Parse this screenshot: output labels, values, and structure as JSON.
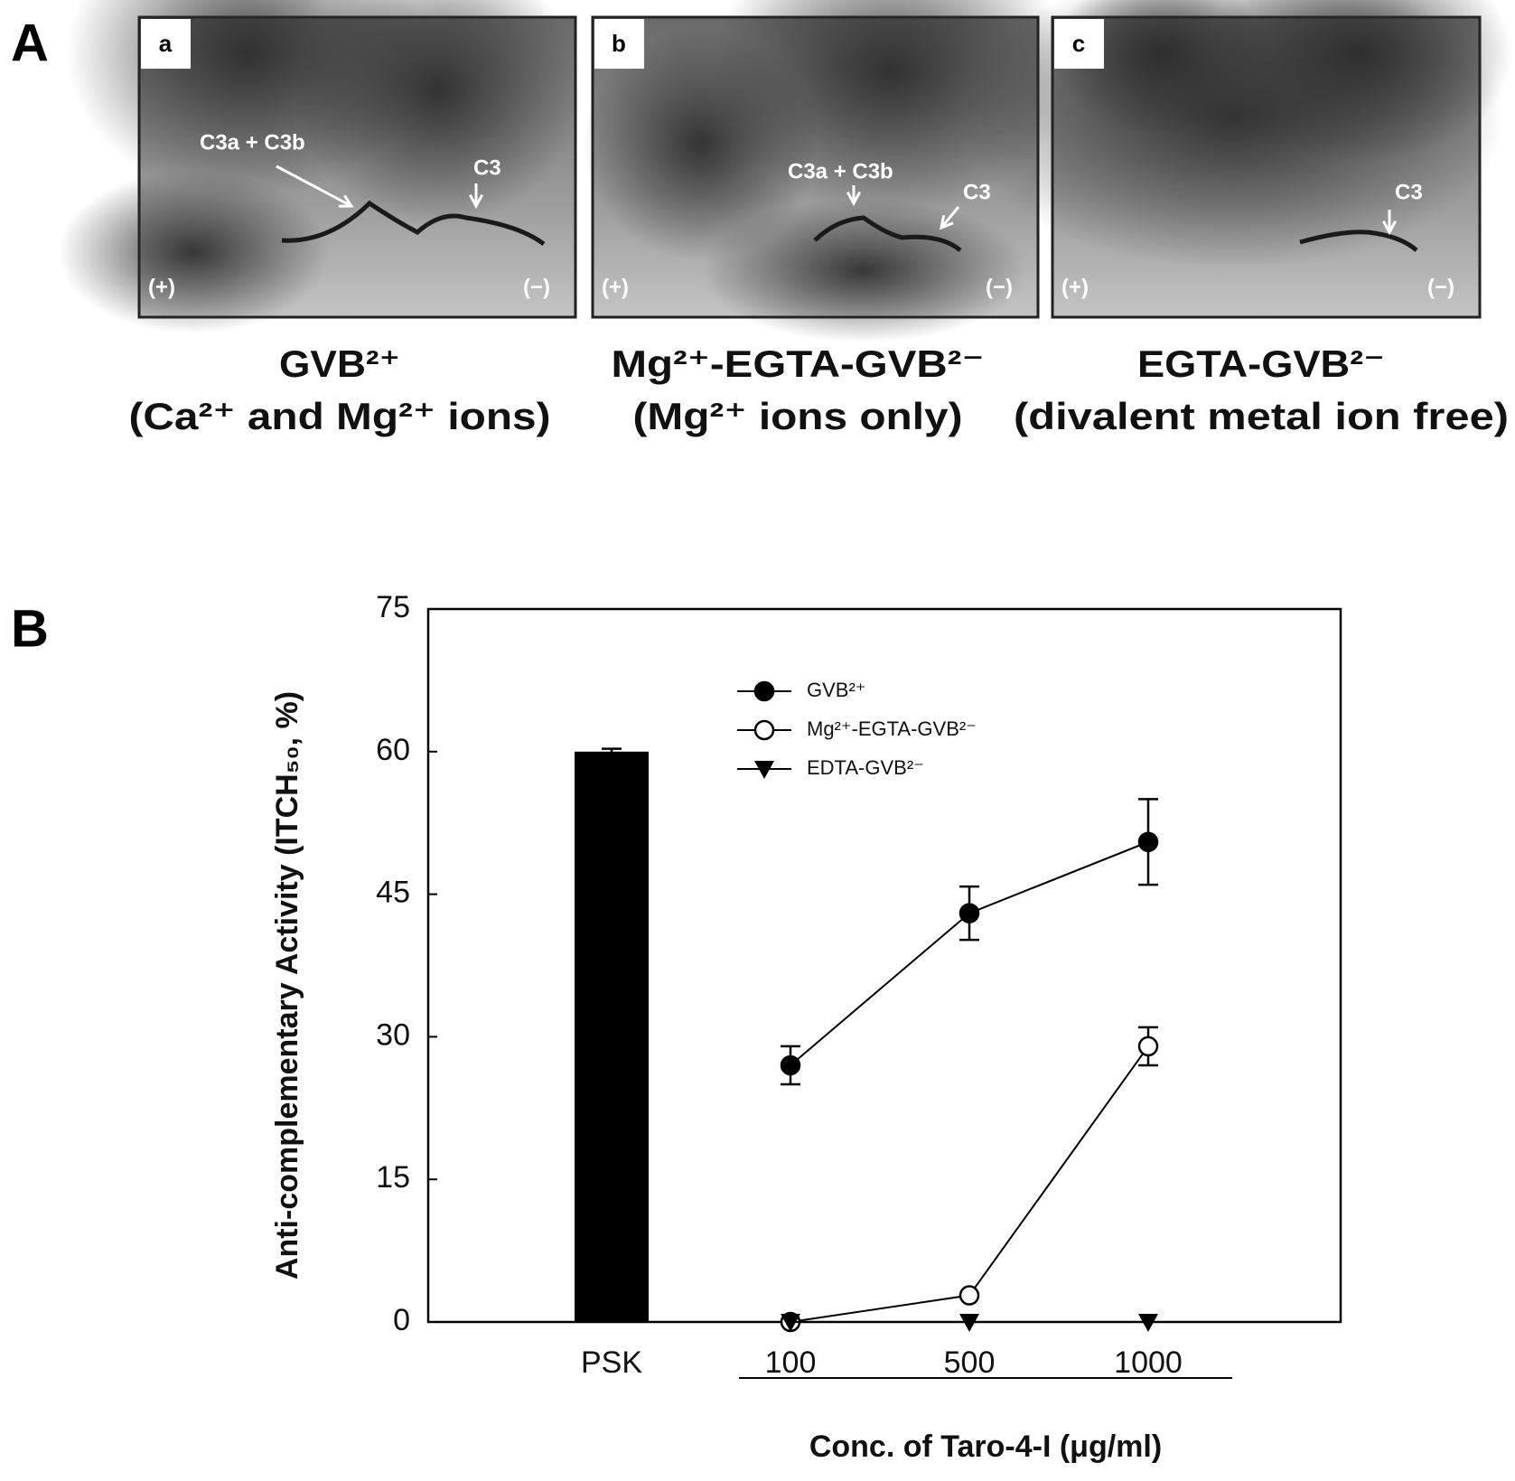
{
  "figure_labels": [
    "A",
    "B"
  ],
  "panels": [
    {
      "letter": "a",
      "annotations": [
        "C3a + C3b",
        "C3"
      ],
      "plus": "(+)",
      "minus": "(−)",
      "caption": [
        "GVB²⁺",
        "(Ca²⁺ and Mg²⁺ ions)"
      ]
    },
    {
      "letter": "b",
      "annotations": [
        "C3a + C3b",
        "C3"
      ],
      "plus": "(+)",
      "minus": "(−)",
      "caption": [
        "Mg²⁺-EGTA-GVB²⁻",
        "(Mg²⁺ ions only)"
      ]
    },
    {
      "letter": "c",
      "annotations": [
        "C3"
      ],
      "plus": "(+)",
      "minus": "(−)",
      "caption": [
        "EGTA-GVB²⁻",
        "(divalent metal ion free)"
      ]
    }
  ],
  "chart_data": {
    "type": "line",
    "ylabel": "Anti-complementary Activity (ITCH₅₀, %)",
    "xlabel": "Conc. of Taro-4-I (μg/ml)",
    "categories": [
      "PSK",
      "100",
      "500",
      "1000"
    ],
    "ylim": [
      0,
      75
    ],
    "yticks": [
      0,
      15,
      30,
      45,
      60,
      75
    ],
    "series": [
      {
        "type": "bar",
        "color": "#000000",
        "values": [
          60,
          null,
          null,
          null
        ],
        "errors": [
          0.3,
          null,
          null,
          null
        ]
      },
      {
        "name": "GVB²⁺",
        "color": "#000000",
        "marker": "circle",
        "values": [
          null,
          27,
          43,
          50.5
        ],
        "errors": [
          null,
          2,
          2.8,
          4.5
        ]
      },
      {
        "name": "Mg²⁺-EGTA-GVB²⁻",
        "color": "#000000",
        "marker": "open-circle",
        "values": [
          null,
          0,
          2.8,
          29
        ],
        "errors": [
          null,
          0,
          0,
          2
        ]
      },
      {
        "name": "EDTA-GVB²⁻",
        "color": "#000000",
        "marker": "triangle-down",
        "values": [
          null,
          0,
          0,
          0
        ]
      }
    ]
  }
}
